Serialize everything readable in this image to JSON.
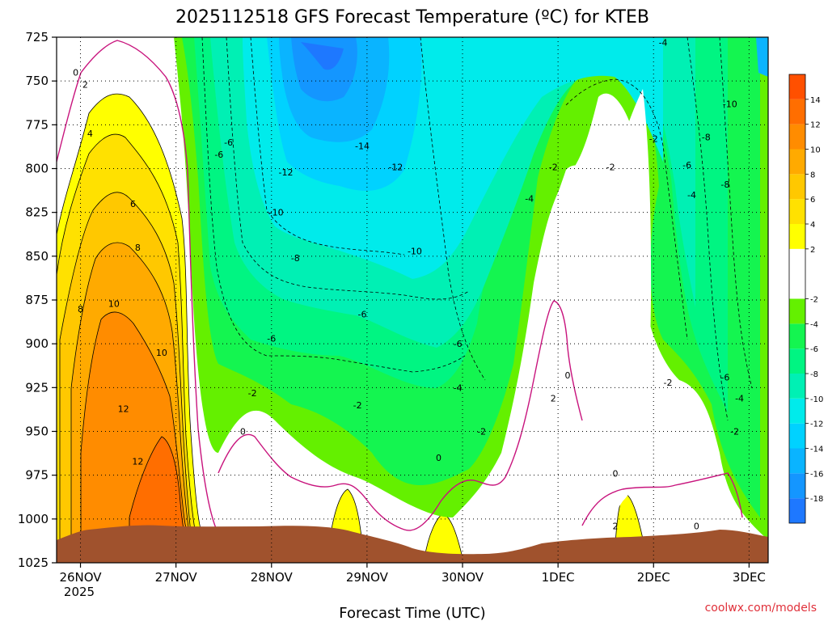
{
  "chart_data": {
    "type": "heatmap",
    "title": "2025112518 GFS Forecast Temperature (ºC) for KTEB",
    "xlabel": "Forecast Time (UTC)",
    "ylabel": "",
    "ylim": [
      1025,
      725
    ],
    "y_ticks": [
      725,
      750,
      775,
      800,
      825,
      850,
      875,
      900,
      925,
      950,
      975,
      1000,
      1025
    ],
    "y_tick_labels": [
      "725",
      "750",
      "775",
      "800",
      "825",
      "850",
      "875",
      "900",
      "925",
      "950",
      "975",
      "1000",
      "1025"
    ],
    "x_ticks": [
      0,
      1,
      2,
      3,
      4,
      5,
      6,
      7
    ],
    "x_tick_labels": [
      "26NOV",
      "27NOV",
      "28NOV",
      "29NOV",
      "30NOV",
      "1DEC",
      "2DEC",
      "3DEC"
    ],
    "x_subtitle": "2025",
    "x_range": [
      -0.25,
      7.2
    ],
    "colorbar": {
      "bounds": [
        -20,
        -18,
        -16,
        -14,
        -12,
        -10,
        -8,
        -6,
        -4,
        -2,
        2,
        4,
        6,
        8,
        10,
        12,
        14,
        16
      ],
      "tick_values": [
        14,
        12,
        10,
        8,
        6,
        4,
        2,
        -2,
        -4,
        -6,
        -8,
        -10,
        -12,
        -14,
        -16,
        -18
      ],
      "tick_labels": [
        "14",
        "12",
        "10",
        "8",
        "6",
        "4",
        "2",
        "-2",
        "-4",
        "-6",
        "-8",
        "-10",
        "-12",
        "-14",
        "-16",
        "-18"
      ],
      "colors": [
        "#1e78ff",
        "#1496ff",
        "#0ab4ff",
        "#00d2ff",
        "#00ebeb",
        "#00f0b4",
        "#00f582",
        "#14f550",
        "#64f000",
        "#ffffff",
        "#ffff00",
        "#ffe100",
        "#ffc800",
        "#ffaa00",
        "#ff8c00",
        "#ff6e00",
        "#ff5000"
      ]
    },
    "ground_color": "#a0522d",
    "contour_labels": [
      {
        "text": "0",
        "t": -0.05,
        "p": 745
      },
      {
        "text": "2",
        "t": 0.05,
        "p": 752
      },
      {
        "text": "4",
        "t": 0.1,
        "p": 780
      },
      {
        "text": "6",
        "t": 0.55,
        "p": 820
      },
      {
        "text": "8",
        "t": 0.6,
        "p": 845
      },
      {
        "text": "10",
        "t": 0.35,
        "p": 877
      },
      {
        "text": "8",
        "t": 0.0,
        "p": 880
      },
      {
        "text": "10",
        "t": 0.85,
        "p": 905
      },
      {
        "text": "12",
        "t": 0.45,
        "p": 937
      },
      {
        "text": "12",
        "t": 0.6,
        "p": 967
      },
      {
        "text": "-6",
        "t": 1.55,
        "p": 785
      },
      {
        "text": "-6",
        "t": 1.45,
        "p": 792
      },
      {
        "text": "-14",
        "t": 2.95,
        "p": 787
      },
      {
        "text": "-12",
        "t": 2.15,
        "p": 802
      },
      {
        "text": "-12",
        "t": 3.3,
        "p": 799
      },
      {
        "text": "-10",
        "t": 2.05,
        "p": 825
      },
      {
        "text": "-10",
        "t": 3.5,
        "p": 847
      },
      {
        "text": "-8",
        "t": 2.25,
        "p": 851
      },
      {
        "text": "-6",
        "t": 2.95,
        "p": 883
      },
      {
        "text": "-6",
        "t": 2.0,
        "p": 897
      },
      {
        "text": "-6",
        "t": 3.95,
        "p": 900
      },
      {
        "text": "-4",
        "t": 3.95,
        "p": 925
      },
      {
        "text": "-2",
        "t": 1.8,
        "p": 928
      },
      {
        "text": "-2",
        "t": 2.9,
        "p": 935
      },
      {
        "text": "-2",
        "t": 4.2,
        "p": 950
      },
      {
        "text": "0",
        "t": 1.7,
        "p": 950
      },
      {
        "text": "0",
        "t": 3.75,
        "p": 965
      },
      {
        "text": "0",
        "t": 5.1,
        "p": 918
      },
      {
        "text": "2",
        "t": 4.95,
        "p": 931
      },
      {
        "text": "0",
        "t": 5.6,
        "p": 974
      },
      {
        "text": "2",
        "t": 5.6,
        "p": 1004
      },
      {
        "text": "0",
        "t": 6.45,
        "p": 1004
      },
      {
        "text": "-4",
        "t": 6.1,
        "p": 728
      },
      {
        "text": "-4",
        "t": 4.7,
        "p": 817
      },
      {
        "text": "-2",
        "t": 4.95,
        "p": 799
      },
      {
        "text": "-2",
        "t": 5.55,
        "p": 799
      },
      {
        "text": "-2",
        "t": 6.0,
        "p": 783
      },
      {
        "text": "-10",
        "t": 6.8,
        "p": 763
      },
      {
        "text": "-8",
        "t": 6.55,
        "p": 782
      },
      {
        "text": "-6",
        "t": 6.35,
        "p": 798
      },
      {
        "text": "-4",
        "t": 6.4,
        "p": 815
      },
      {
        "text": "-8",
        "t": 6.75,
        "p": 809
      },
      {
        "text": "-2",
        "t": 6.15,
        "p": 922
      },
      {
        "text": "-6",
        "t": 6.75,
        "p": 919
      },
      {
        "text": "-4",
        "t": 6.9,
        "p": 931
      },
      {
        "text": "-2",
        "t": 6.85,
        "p": 950
      }
    ]
  },
  "watermark": "coolwx.com/models"
}
